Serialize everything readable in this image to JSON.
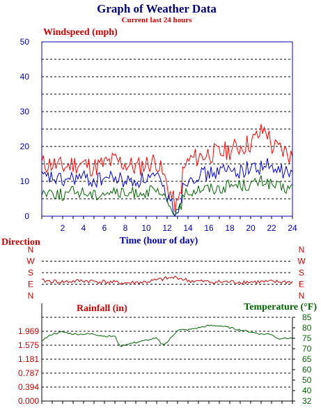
{
  "title": "Graph of Weather Data",
  "subtitle": "Current last 24 hours",
  "chart_data": [
    {
      "type": "line",
      "ylabel": "Windspeed (mph)",
      "xlabel": "Time (hour of day)",
      "xlim": [
        0,
        24
      ],
      "ylim": [
        0,
        50
      ],
      "y_ticks": [
        "0",
        "10",
        "20",
        "30",
        "40",
        "50"
      ],
      "x_ticks": [
        "2",
        "4",
        "6",
        "8",
        "10",
        "12",
        "14",
        "16",
        "18",
        "20",
        "22",
        "24"
      ],
      "grid": true,
      "series": [
        {
          "color": "#ff0000",
          "x": [
            0,
            1,
            2,
            3,
            4,
            5,
            6,
            7,
            8,
            9,
            10,
            11,
            12,
            12.5,
            13,
            13.5,
            14,
            15,
            16,
            17,
            18,
            19,
            20,
            21,
            21.5,
            22,
            23,
            24
          ],
          "values": [
            15,
            15,
            14,
            15,
            15,
            14,
            15,
            16,
            15,
            14,
            15,
            16,
            9,
            5,
            2,
            12,
            16,
            17,
            18,
            18,
            19,
            20,
            21,
            24,
            25,
            20,
            19,
            17
          ]
        },
        {
          "color": "#0000cc",
          "x": [
            0,
            1,
            2,
            3,
            4,
            5,
            6,
            7,
            8,
            9,
            10,
            11,
            12,
            12.5,
            13,
            13.5,
            14,
            15,
            16,
            17,
            18,
            19,
            20,
            21,
            21.5,
            22,
            23,
            24
          ],
          "values": [
            11,
            11,
            10,
            11,
            11,
            10,
            11,
            11,
            10,
            10,
            11,
            11,
            6,
            3,
            1,
            8,
            11,
            12,
            12,
            13,
            13,
            13,
            14,
            14,
            15,
            13,
            13,
            12
          ]
        },
        {
          "color": "#006600",
          "x": [
            0,
            1,
            2,
            3,
            4,
            5,
            6,
            7,
            8,
            9,
            10,
            11,
            12,
            12.5,
            13,
            13.5,
            14,
            15,
            16,
            17,
            18,
            19,
            20,
            21,
            21.5,
            22,
            23,
            24
          ],
          "values": [
            7,
            7,
            6,
            7,
            7,
            6,
            7,
            7,
            6,
            7,
            7,
            7,
            4,
            2,
            0,
            5,
            7,
            8,
            8,
            8,
            9,
            9,
            9,
            10,
            10,
            9,
            8,
            8
          ]
        }
      ]
    },
    {
      "type": "line",
      "ylabel": "Direction",
      "xlim": [
        0,
        24
      ],
      "y_ticks": [
        "N",
        "W",
        "S",
        "E",
        "N"
      ],
      "y_ticks_right": [
        "N",
        "W",
        "S",
        "E",
        "N"
      ],
      "ylim": [
        0,
        4
      ],
      "grid": true,
      "series": [
        {
          "color": "#cc0000",
          "x": [
            0,
            2,
            4,
            6,
            8,
            10,
            12,
            13,
            14,
            16,
            18,
            20,
            22,
            24
          ],
          "values": [
            1.3,
            1.2,
            1.3,
            1.2,
            1.1,
            1.2,
            1.5,
            1.6,
            1.3,
            1.2,
            1.2,
            1.2,
            1.2,
            1.2
          ]
        }
      ]
    },
    {
      "type": "line",
      "ylabel": "Rainfall (in)",
      "ylabel_right": "Temperature (°F)",
      "xlim": [
        0,
        24
      ],
      "ylim": [
        0,
        2.362
      ],
      "ylim_right": [
        32,
        85
      ],
      "y_ticks": [
        "0.000",
        "0.394",
        "0.787",
        "1.181",
        "1.575",
        "1.969"
      ],
      "y_ticks_right": [
        "32",
        "40",
        "50",
        "60",
        "65",
        "70",
        "75",
        "80",
        "85"
      ],
      "grid": true,
      "series": [
        {
          "name": "Rainfall (in)",
          "color": "#cc0000",
          "x": [
            0,
            24
          ],
          "values": [
            0,
            0
          ]
        },
        {
          "name": "Temperature (°F)",
          "color": "#006600",
          "axis": "right",
          "x": [
            0,
            1,
            2,
            3,
            4,
            5,
            6,
            7,
            7.5,
            8,
            9,
            10,
            11,
            11.5,
            12,
            13,
            14,
            15,
            16,
            17,
            18,
            19,
            20,
            21,
            22,
            22.5,
            23,
            24
          ],
          "values": [
            74,
            77,
            78,
            77,
            77,
            77,
            76,
            76,
            71,
            72,
            73,
            74,
            75,
            72,
            73,
            79,
            79,
            80,
            81,
            81,
            80,
            79,
            78,
            77,
            77,
            75,
            75,
            75
          ]
        }
      ]
    }
  ]
}
